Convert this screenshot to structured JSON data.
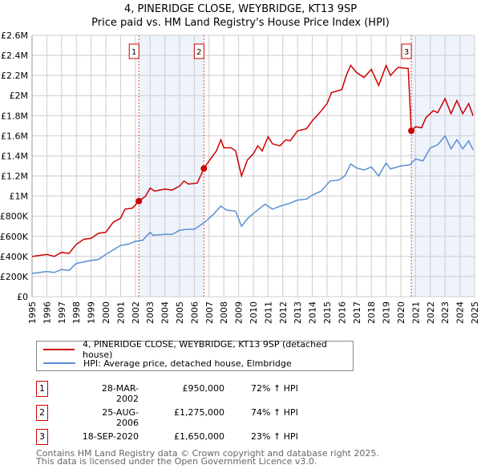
{
  "title": "4, PINERIDGE CLOSE, WEYBRIDGE, KT13 9SP",
  "subtitle": "Price paid vs. HM Land Registry's House Price Index (HPI)",
  "chart_data": {
    "type": "line",
    "title": "4, PINERIDGE CLOSE, WEYBRIDGE, KT13 9SP",
    "xlim": [
      1995,
      2025
    ],
    "ylim": [
      0,
      2600000
    ],
    "x_ticks": [
      "1995",
      "1996",
      "1997",
      "1998",
      "1999",
      "2000",
      "2001",
      "2002",
      "2003",
      "2004",
      "2005",
      "2006",
      "2007",
      "2008",
      "2009",
      "2010",
      "2011",
      "2012",
      "2013",
      "2014",
      "2015",
      "2016",
      "2017",
      "2018",
      "2019",
      "2020",
      "2021",
      "2022",
      "2023",
      "2024",
      "2025"
    ],
    "y_ticks": [
      {
        "v": 0,
        "l": "£0"
      },
      {
        "v": 200000,
        "l": "£200K"
      },
      {
        "v": 400000,
        "l": "£400K"
      },
      {
        "v": 600000,
        "l": "£600K"
      },
      {
        "v": 800000,
        "l": "£800K"
      },
      {
        "v": 1000000,
        "l": "£1M"
      },
      {
        "v": 1200000,
        "l": "£1.2M"
      },
      {
        "v": 1400000,
        "l": "£1.4M"
      },
      {
        "v": 1600000,
        "l": "£1.6M"
      },
      {
        "v": 1800000,
        "l": "£1.8M"
      },
      {
        "v": 2000000,
        "l": "£2M"
      },
      {
        "v": 2200000,
        "l": "£2.2M"
      },
      {
        "v": 2400000,
        "l": "£2.4M"
      },
      {
        "v": 2600000,
        "l": "£2.6M"
      }
    ],
    "grid": true,
    "shaded_ranges": [
      [
        2002.24,
        2006.65
      ],
      [
        2020.71,
        2025
      ]
    ],
    "series": [
      {
        "name": "4, PINERIDGE CLOSE, WEYBRIDGE, KT13 9SP (detached house)",
        "color": "#cc0000",
        "points": [
          [
            1995,
            400
          ],
          [
            1996,
            420
          ],
          [
            1996.5,
            400
          ],
          [
            1997,
            440
          ],
          [
            1997.5,
            430
          ],
          [
            1998,
            520
          ],
          [
            1998.5,
            570
          ],
          [
            1999,
            580
          ],
          [
            1999.5,
            630
          ],
          [
            2000,
            640
          ],
          [
            2000.5,
            740
          ],
          [
            2001,
            780
          ],
          [
            2001.3,
            870
          ],
          [
            2001.8,
            880
          ],
          [
            2002.24,
            950
          ],
          [
            2002.7,
            1000
          ],
          [
            2003,
            1080
          ],
          [
            2003.3,
            1050
          ],
          [
            2004,
            1070
          ],
          [
            2004.5,
            1060
          ],
          [
            2005,
            1100
          ],
          [
            2005.3,
            1150
          ],
          [
            2005.6,
            1120
          ],
          [
            2006.2,
            1130
          ],
          [
            2006.65,
            1275
          ],
          [
            2007,
            1350
          ],
          [
            2007.5,
            1450
          ],
          [
            2007.8,
            1560
          ],
          [
            2008,
            1480
          ],
          [
            2008.5,
            1480
          ],
          [
            2008.8,
            1450
          ],
          [
            2009.2,
            1200
          ],
          [
            2009.6,
            1360
          ],
          [
            2010,
            1420
          ],
          [
            2010.3,
            1500
          ],
          [
            2010.6,
            1450
          ],
          [
            2011,
            1590
          ],
          [
            2011.3,
            1520
          ],
          [
            2011.8,
            1500
          ],
          [
            2012.2,
            1560
          ],
          [
            2012.5,
            1550
          ],
          [
            2013,
            1650
          ],
          [
            2013.6,
            1670
          ],
          [
            2014,
            1750
          ],
          [
            2014.5,
            1830
          ],
          [
            2015,
            1920
          ],
          [
            2015.3,
            2030
          ],
          [
            2016,
            2060
          ],
          [
            2016.3,
            2200
          ],
          [
            2016.6,
            2300
          ],
          [
            2017,
            2230
          ],
          [
            2017.5,
            2180
          ],
          [
            2018,
            2260
          ],
          [
            2018.5,
            2100
          ],
          [
            2019,
            2300
          ],
          [
            2019.3,
            2200
          ],
          [
            2019.8,
            2280
          ],
          [
            2020.5,
            2270
          ],
          [
            2020.71,
            1650
          ],
          [
            2021,
            1690
          ],
          [
            2021.4,
            1680
          ],
          [
            2021.7,
            1780
          ],
          [
            2022.2,
            1850
          ],
          [
            2022.5,
            1830
          ],
          [
            2023,
            1970
          ],
          [
            2023.4,
            1820
          ],
          [
            2023.8,
            1950
          ],
          [
            2024.2,
            1820
          ],
          [
            2024.6,
            1920
          ],
          [
            2024.9,
            1800
          ]
        ]
      },
      {
        "name": "HPI: Average price, detached house, Elmbridge",
        "color": "#5b8fd1",
        "points": [
          [
            1995,
            230
          ],
          [
            1996,
            250
          ],
          [
            1996.5,
            240
          ],
          [
            1997,
            270
          ],
          [
            1997.5,
            260
          ],
          [
            1998,
            330
          ],
          [
            1999,
            360
          ],
          [
            1999.5,
            370
          ],
          [
            2000,
            420
          ],
          [
            2001,
            510
          ],
          [
            2001.5,
            520
          ],
          [
            2002,
            550
          ],
          [
            2002.5,
            560
          ],
          [
            2003,
            640
          ],
          [
            2003.2,
            610
          ],
          [
            2004,
            620
          ],
          [
            2004.5,
            620
          ],
          [
            2005,
            660
          ],
          [
            2005.5,
            670
          ],
          [
            2006,
            670
          ],
          [
            2006.7,
            740
          ],
          [
            2007.3,
            820
          ],
          [
            2007.8,
            900
          ],
          [
            2008.2,
            860
          ],
          [
            2008.8,
            850
          ],
          [
            2009.2,
            700
          ],
          [
            2009.7,
            790
          ],
          [
            2010.2,
            850
          ],
          [
            2010.8,
            920
          ],
          [
            2011.3,
            870
          ],
          [
            2011.8,
            900
          ],
          [
            2012.3,
            920
          ],
          [
            2013,
            960
          ],
          [
            2013.6,
            970
          ],
          [
            2014,
            1010
          ],
          [
            2014.6,
            1050
          ],
          [
            2015.2,
            1150
          ],
          [
            2015.8,
            1160
          ],
          [
            2016.2,
            1200
          ],
          [
            2016.6,
            1320
          ],
          [
            2017,
            1280
          ],
          [
            2017.5,
            1260
          ],
          [
            2018,
            1290
          ],
          [
            2018.5,
            1200
          ],
          [
            2019,
            1330
          ],
          [
            2019.3,
            1270
          ],
          [
            2020,
            1300
          ],
          [
            2020.6,
            1310
          ],
          [
            2021,
            1370
          ],
          [
            2021.5,
            1350
          ],
          [
            2022,
            1480
          ],
          [
            2022.5,
            1510
          ],
          [
            2023,
            1600
          ],
          [
            2023.4,
            1470
          ],
          [
            2023.8,
            1560
          ],
          [
            2024.2,
            1470
          ],
          [
            2024.6,
            1550
          ],
          [
            2024.9,
            1460
          ]
        ]
      }
    ],
    "point_units": "thousands GBP",
    "sales": [
      {
        "label": "1",
        "x": 2002.24,
        "y": 950
      },
      {
        "label": "2",
        "x": 2006.65,
        "y": 1275
      },
      {
        "label": "3",
        "x": 2020.71,
        "y": 1650
      }
    ]
  },
  "legend": {
    "red": "4, PINERIDGE CLOSE, WEYBRIDGE, KT13 9SP (detached house)",
    "blue": "HPI: Average price, detached house, Elmbridge"
  },
  "sales": [
    {
      "num": "1",
      "date": "28-MAR-2002",
      "price": "£950,000",
      "hpi": "72% ↑ HPI"
    },
    {
      "num": "2",
      "date": "25-AUG-2006",
      "price": "£1,275,000",
      "hpi": "74% ↑ HPI"
    },
    {
      "num": "3",
      "date": "18-SEP-2020",
      "price": "£1,650,000",
      "hpi": "23% ↑ HPI"
    }
  ],
  "footer": [
    "Contains HM Land Registry data © Crown copyright and database right 2025.",
    "This data is licensed under the Open Government Licence v3.0."
  ]
}
